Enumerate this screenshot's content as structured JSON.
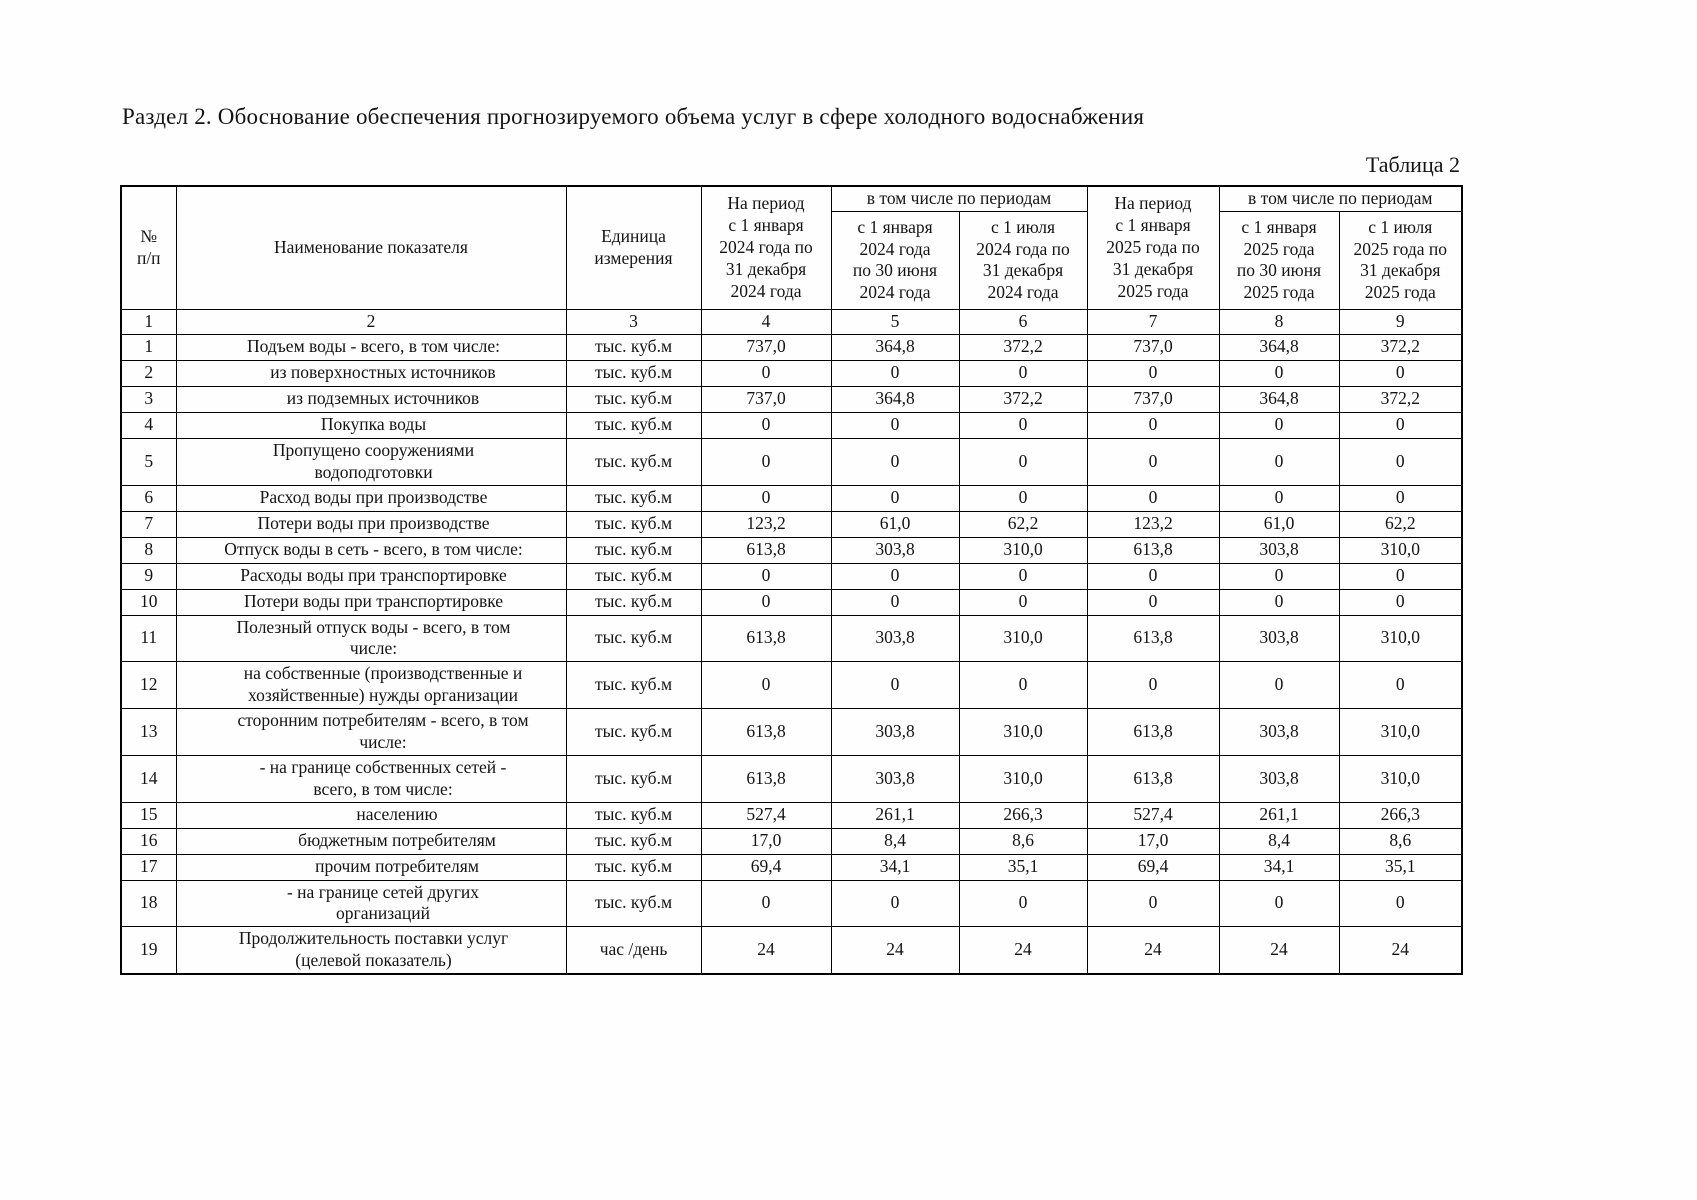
{
  "page": {
    "section_title": "Раздел 2. Обоснование обеспечения прогнозируемого объема услуг в сфере холодного водоснабжения",
    "table_label": "Таблица 2"
  },
  "table": {
    "header": {
      "num": "№\nп/п",
      "indicator": "Наименование показателя",
      "unit": "Единица измерения",
      "period_2024": "На период\nс 1 января\n2024 года по\n31 декабря\n2024 года",
      "including_2024": "в том числе по периодам",
      "h1_2024": "с 1 января\n2024 года\nпо 30 июня\n2024 года",
      "h2_2024": "с 1 июля\n2024 года по\n31 декабря\n2024 года",
      "period_2025": "На период\nс 1 января\n2025 года по\n31 декабря\n2025 года",
      "including_2025": "в том числе по периодам",
      "h1_2025": "с 1 января\n2025 года\nпо 30 июня\n2025 года",
      "h2_2025": "с 1 июля\n2025 года по\n31 декабря\n2025 года",
      "column_numbers": [
        "1",
        "2",
        "3",
        "4",
        "5",
        "6",
        "7",
        "8",
        "9"
      ]
    },
    "rows": [
      {
        "num": "1",
        "indent": 0,
        "name": "Подъем воды - всего, в том числе:",
        "unit": "тыс. куб.м",
        "values": [
          "737,0",
          "364,8",
          "372,2",
          "737,0",
          "364,8",
          "372,2"
        ]
      },
      {
        "num": "2",
        "indent": 1,
        "name": "из поверхностных источников",
        "unit": "тыс. куб.м",
        "values": [
          "0",
          "0",
          "0",
          "0",
          "0",
          "0"
        ]
      },
      {
        "num": "3",
        "indent": 1,
        "name": "из подземных источников",
        "unit": "тыс. куб.м",
        "values": [
          "737,0",
          "364,8",
          "372,2",
          "737,0",
          "364,8",
          "372,2"
        ]
      },
      {
        "num": "4",
        "indent": 0,
        "name": "Покупка воды",
        "unit": "тыс. куб.м",
        "values": [
          "0",
          "0",
          "0",
          "0",
          "0",
          "0"
        ]
      },
      {
        "num": "5",
        "indent": 0,
        "name": "Пропущено сооружениями\nводоподготовки",
        "unit": "тыс. куб.м",
        "values": [
          "0",
          "0",
          "0",
          "0",
          "0",
          "0"
        ]
      },
      {
        "num": "6",
        "indent": 0,
        "name": "Расход воды при производстве",
        "unit": "тыс. куб.м",
        "values": [
          "0",
          "0",
          "0",
          "0",
          "0",
          "0"
        ]
      },
      {
        "num": "7",
        "indent": 0,
        "name": "Потери воды при производстве",
        "unit": "тыс. куб.м",
        "values": [
          "123,2",
          "61,0",
          "62,2",
          "123,2",
          "61,0",
          "62,2"
        ]
      },
      {
        "num": "8",
        "indent": 0,
        "name": "Отпуск воды в сеть - всего, в том числе:",
        "unit": "тыс. куб.м",
        "values": [
          "613,8",
          "303,8",
          "310,0",
          "613,8",
          "303,8",
          "310,0"
        ]
      },
      {
        "num": "9",
        "indent": 0,
        "name": "Расходы воды при транспортировке",
        "unit": "тыс. куб.м",
        "values": [
          "0",
          "0",
          "0",
          "0",
          "0",
          "0"
        ]
      },
      {
        "num": "10",
        "indent": 0,
        "name": "Потери воды при транспортировке",
        "unit": "тыс. куб.м",
        "values": [
          "0",
          "0",
          "0",
          "0",
          "0",
          "0"
        ]
      },
      {
        "num": "11",
        "indent": 0,
        "name": "Полезный отпуск воды - всего, в том\nчисле:",
        "unit": "тыс. куб.м",
        "values": [
          "613,8",
          "303,8",
          "310,0",
          "613,8",
          "303,8",
          "310,0"
        ]
      },
      {
        "num": "12",
        "indent": 1,
        "name": "на собственные (производственные и\nхозяйственные) нужды организации",
        "unit": "тыс. куб.м",
        "values": [
          "0",
          "0",
          "0",
          "0",
          "0",
          "0"
        ]
      },
      {
        "num": "13",
        "indent": 1,
        "name": "сторонним потребителям - всего, в том\nчисле:",
        "unit": "тыс. куб.м",
        "values": [
          "613,8",
          "303,8",
          "310,0",
          "613,8",
          "303,8",
          "310,0"
        ]
      },
      {
        "num": "14",
        "indent": 1,
        "name": "- на границе собственных сетей -\nвсего, в том числе:",
        "unit": "тыс. куб.м",
        "values": [
          "613,8",
          "303,8",
          "310,0",
          "613,8",
          "303,8",
          "310,0"
        ]
      },
      {
        "num": "15",
        "indent": 2,
        "name": "населению",
        "unit": "тыс. куб.м",
        "values": [
          "527,4",
          "261,1",
          "266,3",
          "527,4",
          "261,1",
          "266,3"
        ]
      },
      {
        "num": "16",
        "indent": 2,
        "name": "бюджетным потребителям",
        "unit": "тыс. куб.м",
        "values": [
          "17,0",
          "8,4",
          "8,6",
          "17,0",
          "8,4",
          "8,6"
        ]
      },
      {
        "num": "17",
        "indent": 2,
        "name": "прочим потребителям",
        "unit": "тыс. куб.м",
        "values": [
          "69,4",
          "34,1",
          "35,1",
          "69,4",
          "34,1",
          "35,1"
        ]
      },
      {
        "num": "18",
        "indent": 1,
        "name": "- на границе сетей других\nорганизаций",
        "unit": "тыс. куб.м",
        "values": [
          "0",
          "0",
          "0",
          "0",
          "0",
          "0"
        ]
      },
      {
        "num": "19",
        "indent": 0,
        "name": "Продолжительность поставки услуг\n(целевой показатель)",
        "unit": "час /день",
        "values": [
          "24",
          "24",
          "24",
          "24",
          "24",
          "24"
        ]
      }
    ]
  }
}
